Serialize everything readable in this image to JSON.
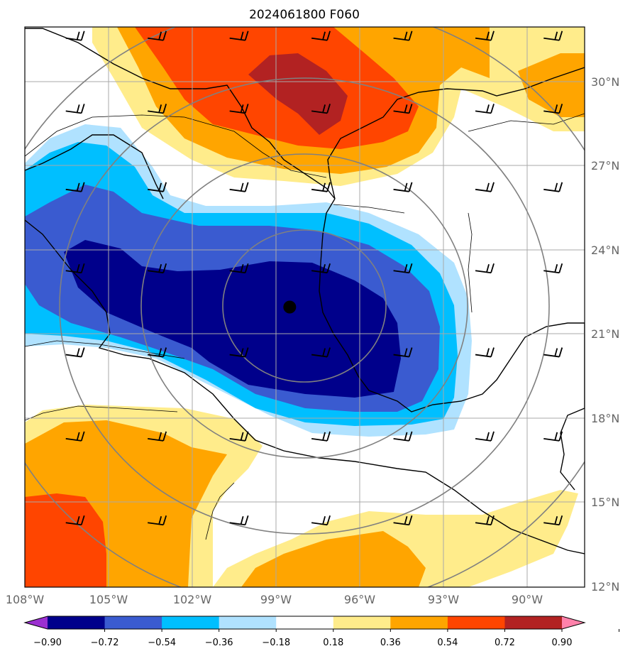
{
  "chart_data": {
    "type": "heatmap",
    "title": "2024061800 F060",
    "field": "filled contour field with wind barbs and concentric range rings",
    "lon_range": [
      -108.0,
      -87.5
    ],
    "lat_range": [
      12.0,
      32.0
    ],
    "x_ticks": [
      {
        "value": -108,
        "label": "108°W"
      },
      {
        "value": -105,
        "label": "105°W"
      },
      {
        "value": -102,
        "label": "102°W"
      },
      {
        "value": -99,
        "label": "99°W"
      },
      {
        "value": -96,
        "label": "96°W"
      },
      {
        "value": -93,
        "label": "93°W"
      },
      {
        "value": -90,
        "label": "90°W"
      }
    ],
    "y_ticks": [
      {
        "value": 30,
        "label": "30°N"
      },
      {
        "value": 27,
        "label": "27°N"
      },
      {
        "value": 24,
        "label": "24°N"
      },
      {
        "value": 21,
        "label": "21°N"
      },
      {
        "value": 18,
        "label": "18°N"
      },
      {
        "value": 15,
        "label": "15°N"
      },
      {
        "value": 12,
        "label": "12°N"
      }
    ],
    "center_marker": {
      "lon": -98.3,
      "lat": 22.0
    },
    "range_rings_deg": [
      3,
      6,
      9,
      12
    ],
    "colorbar": {
      "levels": [
        -0.9,
        -0.72,
        -0.54,
        -0.36,
        -0.18,
        0.18,
        0.36,
        0.54,
        0.72,
        0.9
      ],
      "labels": [
        "−0.90",
        "−0.72",
        "−0.54",
        "−0.36",
        "−0.18",
        "0.18",
        "0.36",
        "0.54",
        "0.72",
        "0.90"
      ],
      "colors": [
        "#9b30d0",
        "#00008b",
        "#3a5bd0",
        "#00bfff",
        "#b0e2ff",
        "#ffffff",
        "#ffec8b",
        "#ffa500",
        "#ff4500",
        "#b22222",
        "#ff82ab"
      ]
    },
    "wind_barbs": [
      {
        "lon": -106.5,
        "lat": 31.6
      },
      {
        "lon": -103.5,
        "lat": 31.6
      },
      {
        "lon": -100.5,
        "lat": 31.6
      },
      {
        "lon": -97.5,
        "lat": 31.6
      },
      {
        "lon": -94.5,
        "lat": 31.6
      },
      {
        "lon": -91.5,
        "lat": 31.6
      },
      {
        "lon": -89.0,
        "lat": 31.6
      },
      {
        "lon": -106.5,
        "lat": 29.0
      },
      {
        "lon": -103.5,
        "lat": 29.0
      },
      {
        "lon": -100.5,
        "lat": 29.0
      },
      {
        "lon": -97.5,
        "lat": 29.0
      },
      {
        "lon": -94.5,
        "lat": 29.0
      },
      {
        "lon": -91.5,
        "lat": 29.0
      },
      {
        "lon": -89.0,
        "lat": 29.0
      },
      {
        "lon": -106.5,
        "lat": 26.2
      },
      {
        "lon": -103.5,
        "lat": 26.2
      },
      {
        "lon": -100.5,
        "lat": 26.2
      },
      {
        "lon": -97.5,
        "lat": 26.2
      },
      {
        "lon": -94.5,
        "lat": 26.2
      },
      {
        "lon": -91.5,
        "lat": 26.2
      },
      {
        "lon": -89.0,
        "lat": 26.2
      },
      {
        "lon": -106.5,
        "lat": 23.3
      },
      {
        "lon": -103.5,
        "lat": 23.3
      },
      {
        "lon": -100.5,
        "lat": 23.3
      },
      {
        "lon": -97.5,
        "lat": 23.3
      },
      {
        "lon": -94.5,
        "lat": 23.3
      },
      {
        "lon": -91.5,
        "lat": 23.3
      },
      {
        "lon": -89.0,
        "lat": 23.3
      },
      {
        "lon": -106.5,
        "lat": 20.3
      },
      {
        "lon": -103.5,
        "lat": 20.3
      },
      {
        "lon": -100.5,
        "lat": 20.3
      },
      {
        "lon": -97.5,
        "lat": 20.3
      },
      {
        "lon": -94.5,
        "lat": 20.3
      },
      {
        "lon": -91.5,
        "lat": 20.3
      },
      {
        "lon": -89.0,
        "lat": 20.3
      },
      {
        "lon": -106.5,
        "lat": 17.3
      },
      {
        "lon": -103.5,
        "lat": 17.3
      },
      {
        "lon": -100.5,
        "lat": 17.3
      },
      {
        "lon": -97.5,
        "lat": 17.3
      },
      {
        "lon": -94.5,
        "lat": 17.3
      },
      {
        "lon": -91.5,
        "lat": 17.3
      },
      {
        "lon": -89.0,
        "lat": 17.3
      },
      {
        "lon": -106.5,
        "lat": 14.3
      },
      {
        "lon": -103.5,
        "lat": 14.3
      },
      {
        "lon": -100.5,
        "lat": 14.3
      },
      {
        "lon": -97.5,
        "lat": 14.3
      },
      {
        "lon": -94.5,
        "lat": 14.3
      },
      {
        "lon": -91.5,
        "lat": 14.3
      },
      {
        "lon": -89.0,
        "lat": 14.3
      }
    ]
  }
}
